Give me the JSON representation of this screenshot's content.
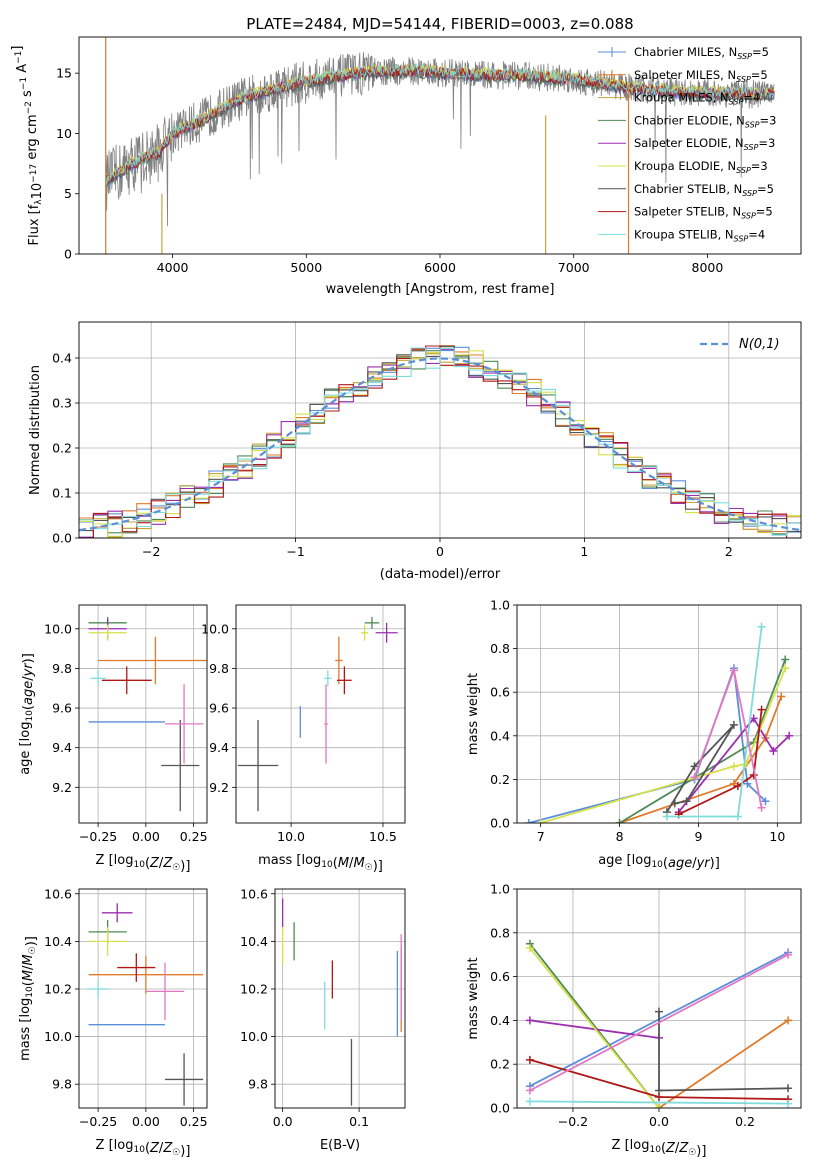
{
  "figure": {
    "title": "PLATE=2484, MJD=54144, FIBERID=0003, z=0.088"
  },
  "legend_spec": {
    "entries": [
      {
        "pre": "Chabrier MILES, N",
        "sub": "SSP",
        "post": "=5",
        "color": "#5b8fd9"
      },
      {
        "pre": "Salpeter MILES, N",
        "sub": "SSP",
        "post": "=5",
        "color": "#e07a2a"
      },
      {
        "pre": "Kroupa MILES, N",
        "sub": "SSP",
        "post": "=4",
        "color": "#c9a43a"
      },
      {
        "pre": "Chabrier ELODIE, N",
        "sub": "SSP",
        "post": "=3",
        "color": "#4f8a55"
      },
      {
        "pre": "Salpeter ELODIE, N",
        "sub": "SSP",
        "post": "=3",
        "color": "#9b2fb0"
      },
      {
        "pre": "Kroupa ELODIE, N",
        "sub": "SSP",
        "post": "=3",
        "color": "#d6e04a"
      },
      {
        "pre": "Chabrier STELIB, N",
        "sub": "SSP",
        "post": "=5",
        "color": "#555555"
      },
      {
        "pre": "Salpeter STELIB, N",
        "sub": "SSP",
        "post": "=5",
        "color": "#b01818"
      },
      {
        "pre": "Kroupa STELIB, N",
        "sub": "SSP",
        "post": "=4",
        "color": "#7fdcdc"
      }
    ],
    "normal_label": "N(0,1)"
  },
  "chart_data": [
    {
      "id": "spectrum",
      "type": "line",
      "xlabel": "wavelength [Angstrom, rest frame]",
      "ylabel": "Flux [f_λ 10^-17 erg cm^-2 s^-1 A^-1]",
      "xlim": [
        3300,
        8700
      ],
      "ylim": [
        0,
        18
      ],
      "xticks": [
        4000,
        5000,
        6000,
        7000,
        8000
      ],
      "yticks": [
        0,
        5,
        10,
        15
      ],
      "grid": false,
      "legend": "right",
      "continuum": {
        "x": [
          3500,
          3700,
          3900,
          4000,
          4200,
          4500,
          4800,
          5100,
          5400,
          5800,
          6200,
          6600,
          7000,
          7400,
          7800,
          8200,
          8500
        ],
        "y": [
          6.0,
          7.5,
          8.5,
          10.0,
          11.0,
          12.8,
          13.8,
          14.5,
          15.0,
          15.2,
          14.9,
          14.8,
          14.5,
          13.8,
          13.4,
          13.3,
          13.2
        ]
      }
    },
    {
      "id": "residuals",
      "type": "histogram",
      "xlabel": "(data-model)/error",
      "ylabel": "Normed distribution",
      "xlim": [
        -2.5,
        2.5
      ],
      "ylim": [
        0,
        0.48
      ],
      "xticks": [
        -2,
        -1,
        0,
        1,
        2
      ],
      "yticks": [
        0.0,
        0.1,
        0.2,
        0.3,
        0.4
      ],
      "grid": true,
      "legend": "top-right",
      "bin_width": 0.1
    },
    {
      "id": "age_vs_Z",
      "type": "errorbar",
      "xlabel": "Z [log10(Z/Z☉)]",
      "ylabel": "age [log10(age/yr)]",
      "xlim": [
        -0.35,
        0.32
      ],
      "ylim": [
        9.02,
        10.12
      ],
      "xticks": [
        -0.25,
        0.0,
        0.25
      ],
      "xticklabels": [
        "−0.25",
        "0.00",
        "0.25"
      ],
      "yticks": [
        9.2,
        9.4,
        9.6,
        9.8,
        10.0
      ],
      "grid": true,
      "points": [
        {
          "x": -0.1,
          "y": 9.53,
          "xerr": 0.2,
          "yerr": 0.0,
          "color": "#5b8fd9"
        },
        {
          "x": 0.05,
          "y": 9.84,
          "xerr": 0.3,
          "yerr": 0.12,
          "color": "#e07a2a"
        },
        {
          "x": -0.2,
          "y": 10.03,
          "xerr": 0.1,
          "yerr": 0.03,
          "color": "#4f8a55"
        },
        {
          "x": -0.2,
          "y": 10.0,
          "xerr": 0.1,
          "yerr": 0.05,
          "color": "#9b2fb0"
        },
        {
          "x": -0.2,
          "y": 9.98,
          "xerr": 0.1,
          "yerr": 0.04,
          "color": "#d6e04a"
        },
        {
          "x": 0.18,
          "y": 9.31,
          "xerr": 0.1,
          "yerr": 0.23,
          "color": "#555555"
        },
        {
          "x": -0.1,
          "y": 9.74,
          "xerr": 0.13,
          "yerr": 0.07,
          "color": "#b01818"
        },
        {
          "x": -0.25,
          "y": 9.75,
          "xerr": 0.04,
          "yerr": 0.04,
          "color": "#7fdcdc"
        },
        {
          "x": 0.2,
          "y": 9.52,
          "xerr": 0.1,
          "yerr": 0.2,
          "color": "#e377c2"
        }
      ]
    },
    {
      "id": "age_vs_mass",
      "type": "errorbar",
      "xlabel": "mass [log10(M/M☉)]",
      "ylabel": "",
      "xlim": [
        9.7,
        10.62
      ],
      "ylim": [
        9.02,
        10.12
      ],
      "xticks": [
        10.0,
        10.5
      ],
      "xticklabels": [
        "10.0",
        "10.5"
      ],
      "yticks": [
        9.2,
        9.4,
        9.6,
        9.8,
        10.0
      ],
      "grid": true,
      "points": [
        {
          "x": 10.05,
          "y": 9.53,
          "xerr": 0.0,
          "yerr": 0.08,
          "color": "#5b8fd9"
        },
        {
          "x": 10.26,
          "y": 9.84,
          "xerr": 0.02,
          "yerr": 0.12,
          "color": "#e07a2a"
        },
        {
          "x": 10.44,
          "y": 10.03,
          "xerr": 0.04,
          "yerr": 0.03,
          "color": "#4f8a55"
        },
        {
          "x": 10.52,
          "y": 9.98,
          "xerr": 0.06,
          "yerr": 0.05,
          "color": "#9b2fb0"
        },
        {
          "x": 10.4,
          "y": 9.98,
          "xerr": 0.02,
          "yerr": 0.04,
          "color": "#d6e04a"
        },
        {
          "x": 9.82,
          "y": 9.31,
          "xerr": 0.11,
          "yerr": 0.23,
          "color": "#555555"
        },
        {
          "x": 10.29,
          "y": 9.74,
          "xerr": 0.04,
          "yerr": 0.07,
          "color": "#b01818"
        },
        {
          "x": 10.2,
          "y": 9.75,
          "xerr": 0.02,
          "yerr": 0.04,
          "color": "#7fdcdc"
        },
        {
          "x": 10.19,
          "y": 9.52,
          "xerr": 0.01,
          "yerr": 0.2,
          "color": "#e377c2"
        }
      ]
    },
    {
      "id": "massweight_vs_age",
      "type": "line",
      "xlabel": "age [log10(age/yr)]",
      "ylabel": "mass weight",
      "xlim": [
        6.7,
        10.3
      ],
      "ylim": [
        0,
        1.0
      ],
      "xticks": [
        7,
        8,
        9,
        10
      ],
      "yticks": [
        0.0,
        0.2,
        0.4,
        0.6,
        0.8,
        1.0
      ],
      "grid": true,
      "series": [
        {
          "color": "#5b8fd9",
          "x": [
            6.85,
            8.95,
            9.45,
            9.62,
            9.85
          ],
          "y": [
            0.0,
            0.2,
            0.71,
            0.18,
            0.1
          ]
        },
        {
          "color": "#e07a2a",
          "x": [
            8.0,
            9.45,
            9.85,
            10.05
          ],
          "y": [
            0.0,
            0.18,
            0.39,
            0.58
          ]
        },
        {
          "color": "#4f8a55",
          "x": [
            8.0,
            9.7,
            10.1
          ],
          "y": [
            0.0,
            0.37,
            0.75
          ]
        },
        {
          "color": "#9b2fb0",
          "x": [
            8.75,
            9.7,
            9.95,
            10.15
          ],
          "y": [
            0.05,
            0.48,
            0.33,
            0.4
          ]
        },
        {
          "color": "#d6e04a",
          "x": [
            7.0,
            9.45,
            9.6,
            10.1
          ],
          "y": [
            0.0,
            0.26,
            0.27,
            0.71
          ]
        },
        {
          "color": "#555555",
          "x": [
            8.6,
            8.95,
            9.45,
            8.85,
            8.7
          ],
          "y": [
            0.05,
            0.26,
            0.45,
            0.1,
            0.09
          ]
        },
        {
          "color": "#b01818",
          "x": [
            8.75,
            9.5,
            9.7,
            9.8
          ],
          "y": [
            0.04,
            0.17,
            0.22,
            0.52
          ]
        },
        {
          "color": "#7fdcdc",
          "x": [
            8.6,
            9.5,
            9.8
          ],
          "y": [
            0.03,
            0.03,
            0.9
          ]
        },
        {
          "color": "#e377c2",
          "x": [
            8.95,
            9.45,
            9.8
          ],
          "y": [
            0.21,
            0.7,
            0.07
          ]
        }
      ]
    },
    {
      "id": "mass_vs_Z",
      "type": "errorbar",
      "xlabel": "Z [log10(Z/Z☉)]",
      "ylabel": "mass [log10(M/M☉)]",
      "xlim": [
        -0.35,
        0.32
      ],
      "ylim": [
        9.7,
        10.62
      ],
      "xticks": [
        -0.25,
        0.0,
        0.25
      ],
      "xticklabels": [
        "−0.25",
        "0.00",
        "0.25"
      ],
      "yticks": [
        9.8,
        10.0,
        10.2,
        10.4,
        10.6
      ],
      "grid": true,
      "points": [
        {
          "x": -0.1,
          "y": 10.05,
          "xerr": 0.2,
          "yerr": 0.0,
          "color": "#5b8fd9"
        },
        {
          "x": 0.0,
          "y": 10.26,
          "xerr": 0.3,
          "yerr": 0.08,
          "color": "#e07a2a"
        },
        {
          "x": -0.2,
          "y": 10.44,
          "xerr": 0.1,
          "yerr": 0.05,
          "color": "#4f8a55"
        },
        {
          "x": -0.15,
          "y": 10.52,
          "xerr": 0.08,
          "yerr": 0.04,
          "color": "#9b2fb0"
        },
        {
          "x": -0.2,
          "y": 10.4,
          "xerr": 0.1,
          "yerr": 0.06,
          "color": "#d6e04a"
        },
        {
          "x": 0.2,
          "y": 9.82,
          "xerr": 0.1,
          "yerr": 0.11,
          "color": "#555555"
        },
        {
          "x": -0.05,
          "y": 10.29,
          "xerr": 0.1,
          "yerr": 0.06,
          "color": "#b01818"
        },
        {
          "x": -0.25,
          "y": 10.2,
          "xerr": 0.06,
          "yerr": 0.04,
          "color": "#7fdcdc"
        },
        {
          "x": 0.1,
          "y": 10.19,
          "xerr": 0.1,
          "yerr": 0.12,
          "color": "#e377c2"
        }
      ]
    },
    {
      "id": "mass_vs_ebv",
      "type": "errorbar",
      "xlabel": "E(B-V)",
      "ylabel": "",
      "xlim": [
        -0.01,
        0.16
      ],
      "ylim": [
        9.7,
        10.62
      ],
      "xticks": [
        0.0,
        0.1
      ],
      "xticklabels": [
        "0.0",
        "0.1"
      ],
      "yticks": [
        9.8,
        10.0,
        10.2,
        10.4,
        10.6
      ],
      "grid": true,
      "points": [
        {
          "x": 0.15,
          "y": 10.18,
          "xerr": 0.0,
          "yerr": 0.18,
          "color": "#5b8fd9"
        },
        {
          "x": 0.155,
          "y": 10.2,
          "xerr": 0.0,
          "yerr": 0.18,
          "color": "#e07a2a"
        },
        {
          "x": 0.015,
          "y": 10.4,
          "xerr": 0.0,
          "yerr": 0.08,
          "color": "#4f8a55"
        },
        {
          "x": 0.0,
          "y": 10.52,
          "xerr": 0.0,
          "yerr": 0.06,
          "color": "#9b2fb0"
        },
        {
          "x": 0.0,
          "y": 10.38,
          "xerr": 0.0,
          "yerr": 0.08,
          "color": "#d6e04a"
        },
        {
          "x": 0.09,
          "y": 9.85,
          "xerr": 0.0,
          "yerr": 0.14,
          "color": "#555555"
        },
        {
          "x": 0.065,
          "y": 10.24,
          "xerr": 0.0,
          "yerr": 0.08,
          "color": "#b01818"
        },
        {
          "x": 0.055,
          "y": 10.13,
          "xerr": 0.0,
          "yerr": 0.1,
          "color": "#7fdcdc"
        },
        {
          "x": 0.155,
          "y": 10.25,
          "xerr": 0.0,
          "yerr": 0.18,
          "color": "#e377c2"
        }
      ]
    },
    {
      "id": "massweight_vs_Z",
      "type": "line",
      "xlabel": "Z [log10(Z/Z☉)]",
      "ylabel": "mass weight",
      "xlim": [
        -0.33,
        0.33
      ],
      "ylim": [
        0,
        1.0
      ],
      "xticks": [
        -0.2,
        0.0,
        0.2
      ],
      "xticklabels": [
        "−0.2",
        "0.0",
        "0.2"
      ],
      "yticks": [
        0.0,
        0.2,
        0.4,
        0.6,
        0.8,
        1.0
      ],
      "grid": true,
      "series": [
        {
          "color": "#5b8fd9",
          "x": [
            -0.3,
            0.3
          ],
          "y": [
            0.1,
            0.71
          ]
        },
        {
          "color": "#e07a2a",
          "x": [
            0.0,
            0.3
          ],
          "y": [
            0.0,
            0.4
          ]
        },
        {
          "color": "#4f8a55",
          "x": [
            -0.3,
            0.0
          ],
          "y": [
            0.75,
            0.0
          ]
        },
        {
          "color": "#9b2fb0",
          "x": [
            -0.3,
            0.0
          ],
          "y": [
            0.4,
            0.32
          ]
        },
        {
          "color": "#d6e04a",
          "x": [
            -0.3,
            0.0
          ],
          "y": [
            0.73,
            0.0
          ]
        },
        {
          "color": "#555555",
          "x": [
            0.0,
            0.0,
            0.3
          ],
          "y": [
            0.44,
            0.08,
            0.09
          ]
        },
        {
          "color": "#b01818",
          "x": [
            -0.3,
            0.0,
            0.3
          ],
          "y": [
            0.22,
            0.05,
            0.04
          ]
        },
        {
          "color": "#7fdcdc",
          "x": [
            -0.3,
            0.3
          ],
          "y": [
            0.03,
            0.02
          ]
        },
        {
          "color": "#e377c2",
          "x": [
            -0.3,
            0.3
          ],
          "y": [
            0.08,
            0.7
          ]
        }
      ]
    }
  ]
}
